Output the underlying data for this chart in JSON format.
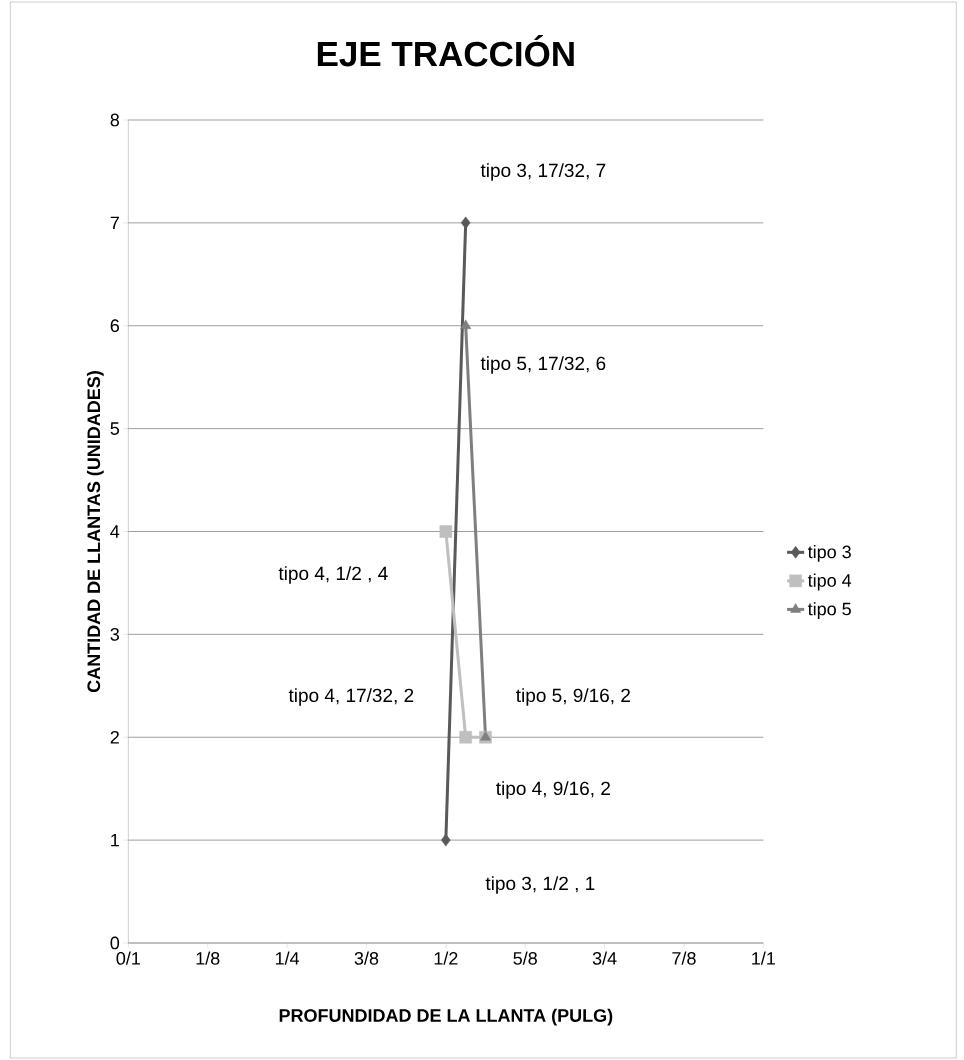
{
  "chart_data": {
    "type": "line",
    "title": "EJE TRACCIÓN",
    "xlabel": "PROFUNDIDAD DE LA LLANTA (PULG)",
    "ylabel": "CANTIDAD DE LLANTAS (UNIDADES)",
    "xlim": [
      0,
      1
    ],
    "xticks": [
      {
        "value": 0,
        "label": "0/1"
      },
      {
        "value": 0.125,
        "label": "1/8"
      },
      {
        "value": 0.25,
        "label": "1/4"
      },
      {
        "value": 0.375,
        "label": "3/8"
      },
      {
        "value": 0.5,
        "label": "1/2"
      },
      {
        "value": 0.625,
        "label": "5/8"
      },
      {
        "value": 0.75,
        "label": "3/4"
      },
      {
        "value": 0.875,
        "label": "7/8"
      },
      {
        "value": 1,
        "label": "1/1"
      }
    ],
    "ylim": [
      0,
      8
    ],
    "yticks": [
      0,
      1,
      2,
      3,
      4,
      5,
      6,
      7,
      8
    ],
    "grid": "y",
    "legend": "right",
    "series": [
      {
        "name": "tipo 3",
        "color": "#595959",
        "marker": "diamond",
        "x": [
          0.5,
          0.53125
        ],
        "values": [
          1,
          7
        ]
      },
      {
        "name": "tipo 4",
        "color": "#bfbfbf",
        "marker": "square",
        "x": [
          0.5,
          0.53125,
          0.5625
        ],
        "values": [
          4,
          2,
          2
        ]
      },
      {
        "name": "tipo 5",
        "color": "#7f7f7f",
        "marker": "triangle",
        "x": [
          0.53125,
          0.5625
        ],
        "values": [
          6,
          2
        ]
      }
    ],
    "annotations": [
      "tipo 3, 17/32, 7",
      "tipo 5, 17/32, 6",
      "tipo 4,  1/2 , 4",
      "tipo 4, 17/32, 2",
      "tipo 5,  9/16, 2",
      "tipo 4,  9/16, 2",
      "tipo 3,  1/2 , 1"
    ]
  }
}
